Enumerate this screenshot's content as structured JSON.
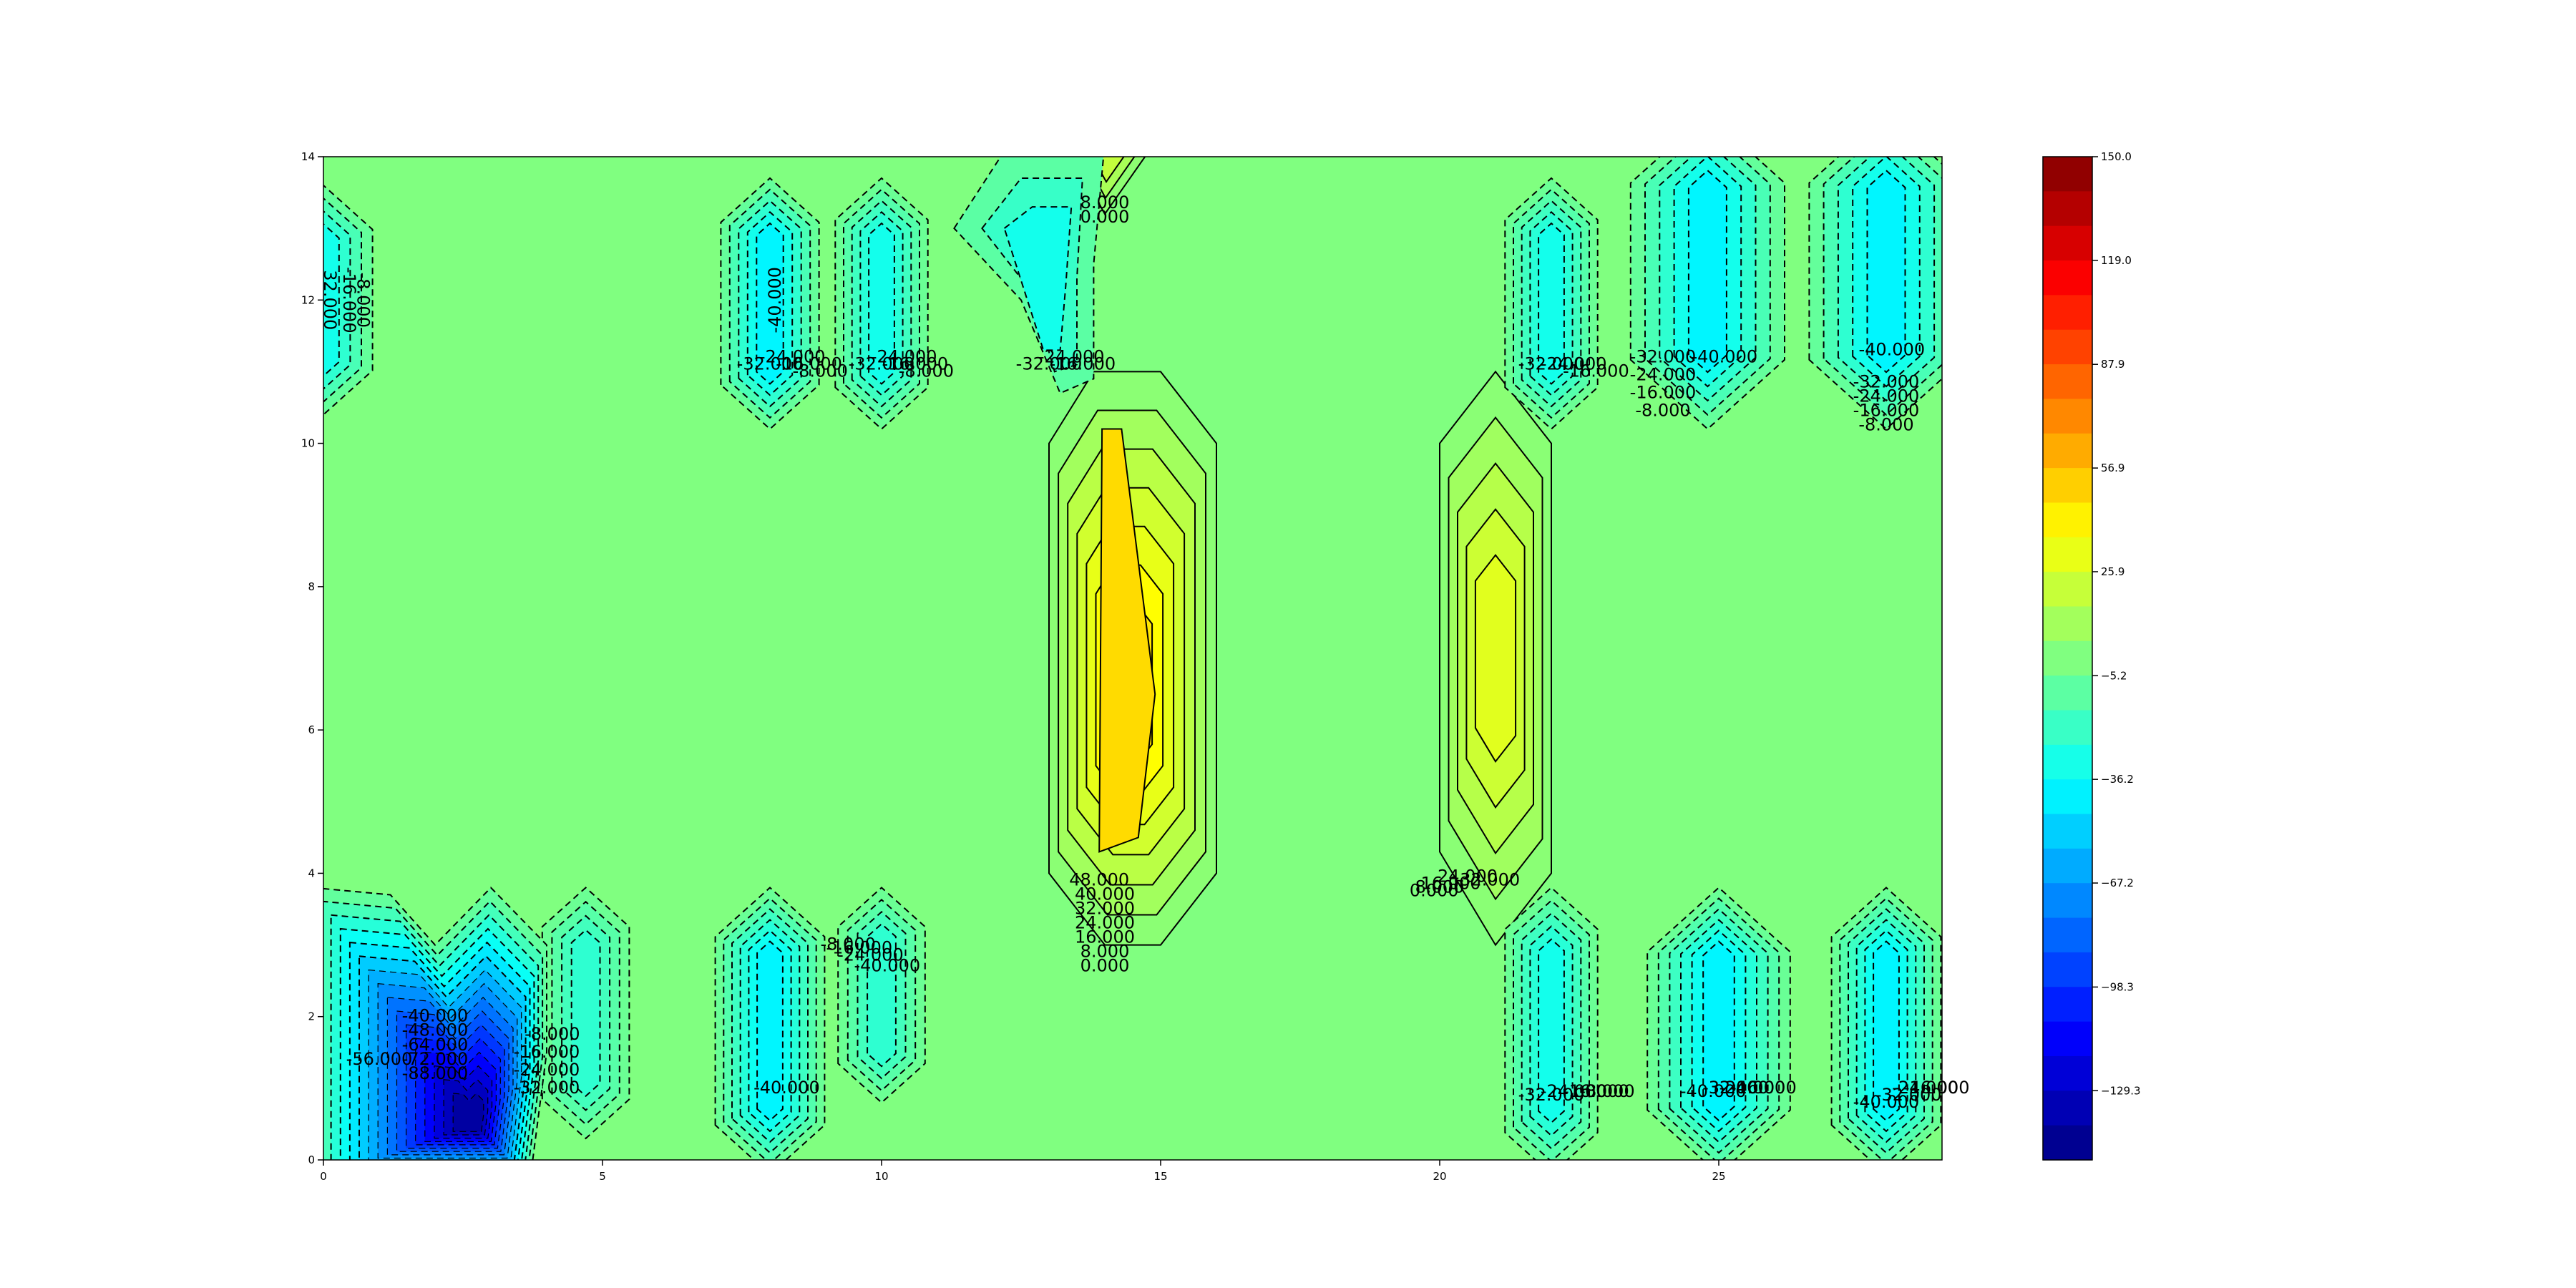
{
  "chart_data": {
    "type": "contourf",
    "title": "",
    "xlabel": "",
    "ylabel": "",
    "xlim": [
      0,
      29
    ],
    "ylim": [
      0,
      14
    ],
    "x_ticks": [
      "0",
      "5",
      "10",
      "15",
      "20",
      "25"
    ],
    "y_ticks": [
      "0",
      "2",
      "4",
      "6",
      "8",
      "10",
      "12",
      "14"
    ],
    "colormap": "jet",
    "colorbar": {
      "min": -150.0,
      "max": 150.0,
      "levels": 29,
      "tick_labels": [
        "150.0",
        "119.0",
        "87.9",
        "56.9",
        "25.9",
        "−5.2",
        "−36.2",
        "−67.2",
        "−98.3",
        "−129.3"
      ],
      "tick_values": [
        150.0,
        119.0,
        87.9,
        56.9,
        25.9,
        -5.2,
        -36.2,
        -67.2,
        -98.3,
        -129.3
      ]
    },
    "background_value": 0,
    "colors": {
      "background": "#80ff80",
      "yellow_region": "#ffdd00",
      "yellow_green": "#d8ff20",
      "cyan_region": "#10f0f0",
      "light_cyan": "#30ffc8",
      "deep_blue": "#0000cc"
    },
    "features": [
      {
        "name": "positive-band-center",
        "sign": "positive",
        "peak": 48,
        "x_range": [
          13,
          16
        ],
        "y_range": [
          3,
          11
        ]
      },
      {
        "name": "positive-band-right",
        "sign": "positive",
        "peak": 32,
        "x_range": [
          20,
          22
        ],
        "y_range": [
          3.5,
          11
        ]
      },
      {
        "name": "positive-top",
        "sign": "positive",
        "peak": 24,
        "x_range": [
          13.4,
          15
        ],
        "y_range": [
          13,
          14
        ]
      },
      {
        "name": "negative-bottom-left",
        "sign": "negative",
        "peak": -140,
        "x_range": [
          0,
          5.5
        ],
        "y_range": [
          0,
          3.8
        ]
      },
      {
        "name": "negative-lobes",
        "sign": "negative",
        "peak": -40,
        "x_range": [
          7,
          29
        ],
        "y_range": [
          0,
          14
        ]
      }
    ],
    "contour_labels": [
      {
        "text": "8.000",
        "x": 14.0,
        "y": 13.35
      },
      {
        "text": "0.000",
        "x": 14.0,
        "y": 13.15
      },
      {
        "text": "-40.000",
        "x": 8.1,
        "y": 12.0,
        "angle": -90
      },
      {
        "text": "32.000",
        "x": 0.1,
        "y": 12.0,
        "angle": 90
      },
      {
        "text": "-16.000",
        "x": 0.45,
        "y": 12.0,
        "angle": 90
      },
      {
        "text": "-8.000",
        "x": 0.7,
        "y": 12.0,
        "angle": 90
      },
      {
        "text": "-32.000",
        "x": 8.0,
        "y": 11.1
      },
      {
        "text": "-24.000",
        "x": 8.4,
        "y": 11.2
      },
      {
        "text": "-16.000",
        "x": 8.7,
        "y": 11.1
      },
      {
        "text": "-8.000",
        "x": 8.9,
        "y": 11.0
      },
      {
        "text": "-32.000",
        "x": 10.0,
        "y": 11.1
      },
      {
        "text": "-24.000",
        "x": 10.4,
        "y": 11.2
      },
      {
        "text": "-16.000",
        "x": 10.6,
        "y": 11.1
      },
      {
        "text": "-8.000",
        "x": 10.8,
        "y": 11.0
      },
      {
        "text": "-32.000",
        "x": 13.0,
        "y": 11.1
      },
      {
        "text": "-24.000",
        "x": 13.4,
        "y": 11.2
      },
      {
        "text": "-16.000",
        "x": 13.6,
        "y": 11.1
      },
      {
        "text": "-32.000",
        "x": 22.0,
        "y": 11.1
      },
      {
        "text": "-24.000",
        "x": 22.4,
        "y": 11.1
      },
      {
        "text": "-16.000",
        "x": 22.8,
        "y": 11.0
      },
      {
        "text": "-32.000",
        "x": 24.0,
        "y": 11.2
      },
      {
        "text": "-24.000",
        "x": 24.0,
        "y": 10.95
      },
      {
        "text": "-16.000",
        "x": 24.0,
        "y": 10.7
      },
      {
        "text": "-8.000",
        "x": 24.0,
        "y": 10.45
      },
      {
        "text": "-40.000",
        "x": 25.1,
        "y": 11.2
      },
      {
        "text": "-40.000",
        "x": 28.1,
        "y": 11.3
      },
      {
        "text": "-32.000",
        "x": 28.0,
        "y": 10.85
      },
      {
        "text": "-24.000",
        "x": 28.0,
        "y": 10.65
      },
      {
        "text": "-16.000",
        "x": 28.0,
        "y": 10.45
      },
      {
        "text": "-8.000",
        "x": 28.0,
        "y": 10.25
      },
      {
        "text": "48.000",
        "x": 13.9,
        "y": 3.9
      },
      {
        "text": "40.000",
        "x": 14.0,
        "y": 3.7
      },
      {
        "text": "32.000",
        "x": 14.0,
        "y": 3.5
      },
      {
        "text": "24.000",
        "x": 14.0,
        "y": 3.3
      },
      {
        "text": "16.000",
        "x": 14.0,
        "y": 3.1
      },
      {
        "text": "8.000",
        "x": 14.0,
        "y": 2.9
      },
      {
        "text": "0.000",
        "x": 14.0,
        "y": 2.7
      },
      {
        "text": "32.000",
        "x": 20.9,
        "y": 3.9
      },
      {
        "text": "24.000",
        "x": 20.5,
        "y": 3.95
      },
      {
        "text": "16.000",
        "x": 20.2,
        "y": 3.85
      },
      {
        "text": "8.000",
        "x": 20.0,
        "y": 3.8
      },
      {
        "text": "0.000",
        "x": 19.9,
        "y": 3.75
      },
      {
        "text": "-8.000",
        "x": 9.4,
        "y": 3.0
      },
      {
        "text": "-16.000",
        "x": 9.6,
        "y": 2.95
      },
      {
        "text": "-24.000",
        "x": 9.8,
        "y": 2.85
      },
      {
        "text": "-40.000",
        "x": 10.1,
        "y": 2.7
      },
      {
        "text": "-40.000",
        "x": 2.0,
        "y": 2.0
      },
      {
        "text": "-48.000",
        "x": 2.0,
        "y": 1.8
      },
      {
        "text": "-64.000",
        "x": 2.0,
        "y": 1.6
      },
      {
        "text": "-72.000",
        "x": 2.0,
        "y": 1.4
      },
      {
        "text": "-88.000",
        "x": 2.0,
        "y": 1.2
      },
      {
        "text": "-56.000",
        "x": 1.0,
        "y": 1.4
      },
      {
        "text": "-8.000",
        "x": 4.1,
        "y": 1.75
      },
      {
        "text": "-16.000",
        "x": 4.0,
        "y": 1.5
      },
      {
        "text": "-24.000",
        "x": 4.0,
        "y": 1.25
      },
      {
        "text": "-32.000",
        "x": 4.0,
        "y": 1.0
      },
      {
        "text": "-40.000",
        "x": 8.3,
        "y": 1.0
      },
      {
        "text": "-32.000",
        "x": 22.0,
        "y": 0.9
      },
      {
        "text": "-24.000",
        "x": 22.4,
        "y": 0.95
      },
      {
        "text": "-16.000",
        "x": 22.8,
        "y": 0.95
      },
      {
        "text": "-8.000",
        "x": 23.0,
        "y": 0.95
      },
      {
        "text": "-40.000",
        "x": 24.9,
        "y": 0.95
      },
      {
        "text": "-32.000",
        "x": 25.3,
        "y": 1.0
      },
      {
        "text": "-24.000",
        "x": 25.6,
        "y": 1.0
      },
      {
        "text": "-16.000",
        "x": 25.8,
        "y": 1.0
      },
      {
        "text": "-40.000",
        "x": 28.0,
        "y": 0.8
      },
      {
        "text": "-32.000",
        "x": 28.4,
        "y": 0.9
      },
      {
        "text": "-24.000",
        "x": 28.7,
        "y": 1.0
      },
      {
        "text": "-16.000",
        "x": 28.9,
        "y": 1.0
      }
    ]
  }
}
